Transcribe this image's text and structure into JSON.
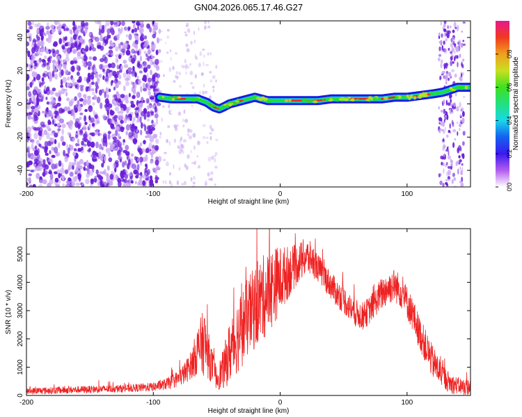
{
  "title": "GN04.2026.065.17.46.G27",
  "colors": {
    "trace": "#ee2222",
    "speckle": "#6a1fd9",
    "speckle_light": "#c9a6f2",
    "band_outer": "#1a1adf",
    "band_mid": "#14c8e6",
    "band_inner": "#22dd22",
    "band_core": "#e82a1e"
  },
  "chart_data": [
    {
      "type": "heatmap",
      "name": "spectrogram",
      "xlabel": "Height of straight line (km)",
      "ylabel": "Frequency (Hz)",
      "xlim": [
        -200,
        150
      ],
      "ylim": [
        -50,
        50
      ],
      "xticks": [
        -200,
        -100,
        0,
        100
      ],
      "yticks": [
        -40,
        -20,
        0,
        20,
        40
      ],
      "colorbar": {
        "label": "Normalized spectral amplitude",
        "range": [
          0,
          1
        ],
        "ticks": [
          "0.0",
          "0.2",
          "0.4",
          "0.6",
          "0.8"
        ],
        "colormap": [
          "#ffffff",
          "#b25cf0",
          "#3b1af0",
          "#1560f0",
          "#19d8e8",
          "#22e080",
          "#40e020",
          "#c8e020",
          "#f0a020",
          "#f03a20",
          "#e81890"
        ]
      },
      "ridge": {
        "x": [
          -95,
          -85,
          -75,
          -65,
          -58,
          -52,
          -48,
          -45,
          -40,
          -35,
          -30,
          -25,
          -20,
          -15,
          -10,
          -5,
          0,
          10,
          20,
          30,
          40,
          50,
          60,
          70,
          80,
          90,
          100,
          110,
          120,
          128,
          140,
          150
        ],
        "freq_hz": [
          4,
          3,
          3,
          3,
          1,
          -2,
          -3,
          -2,
          0,
          1,
          2,
          3,
          4,
          3,
          2,
          2,
          2,
          2,
          2,
          2,
          3,
          3,
          3,
          3,
          3,
          4,
          4,
          5,
          6,
          7,
          10,
          10
        ]
      },
      "noise_region_x": [
        -200,
        -95
      ],
      "noise_edge_x": [
        125,
        145
      ]
    },
    {
      "type": "line",
      "name": "snr",
      "xlabel": "Height of straight line (km)",
      "ylabel": "SNR (10 * v/v)",
      "xlim": [
        -200,
        150
      ],
      "ylim": [
        0,
        5900
      ],
      "xticks": [
        -200,
        -100,
        0,
        100
      ],
      "yticks": [
        0,
        1000,
        2000,
        3000,
        4000,
        5000
      ],
      "envelope": {
        "x": [
          -200,
          -160,
          -120,
          -100,
          -90,
          -80,
          -75,
          -70,
          -65,
          -60,
          -55,
          -50,
          -45,
          -40,
          -35,
          -30,
          -25,
          -20,
          -15,
          -10,
          -5,
          0,
          5,
          10,
          15,
          20,
          25,
          30,
          35,
          40,
          45,
          50,
          55,
          60,
          65,
          70,
          75,
          80,
          85,
          90,
          95,
          100,
          105,
          110,
          115,
          120,
          125,
          130,
          135,
          140,
          145,
          150
        ],
        "mean": [
          150,
          200,
          250,
          300,
          400,
          600,
          800,
          1100,
          1600,
          1900,
          1200,
          600,
          900,
          1500,
          2000,
          2400,
          2800,
          3100,
          3400,
          3600,
          3900,
          4100,
          4300,
          4500,
          4700,
          4900,
          4800,
          4500,
          4200,
          3900,
          3600,
          3400,
          3100,
          2900,
          2800,
          3000,
          3300,
          3600,
          3800,
          3900,
          3700,
          3300,
          2800,
          2200,
          1700,
          1200,
          900,
          600,
          400,
          350,
          300,
          300
        ],
        "noise": [
          120,
          130,
          140,
          160,
          200,
          300,
          400,
          500,
          900,
          1200,
          700,
          400,
          700,
          1100,
          1300,
          1400,
          1400,
          1500,
          1500,
          1500,
          1400,
          1200,
          1000,
          800,
          700,
          700,
          600,
          500,
          500,
          500,
          500,
          500,
          500,
          500,
          500,
          500,
          500,
          600,
          600,
          600,
          600,
          600,
          600,
          600,
          600,
          600,
          500,
          400,
          350,
          300,
          300,
          300
        ]
      }
    }
  ]
}
